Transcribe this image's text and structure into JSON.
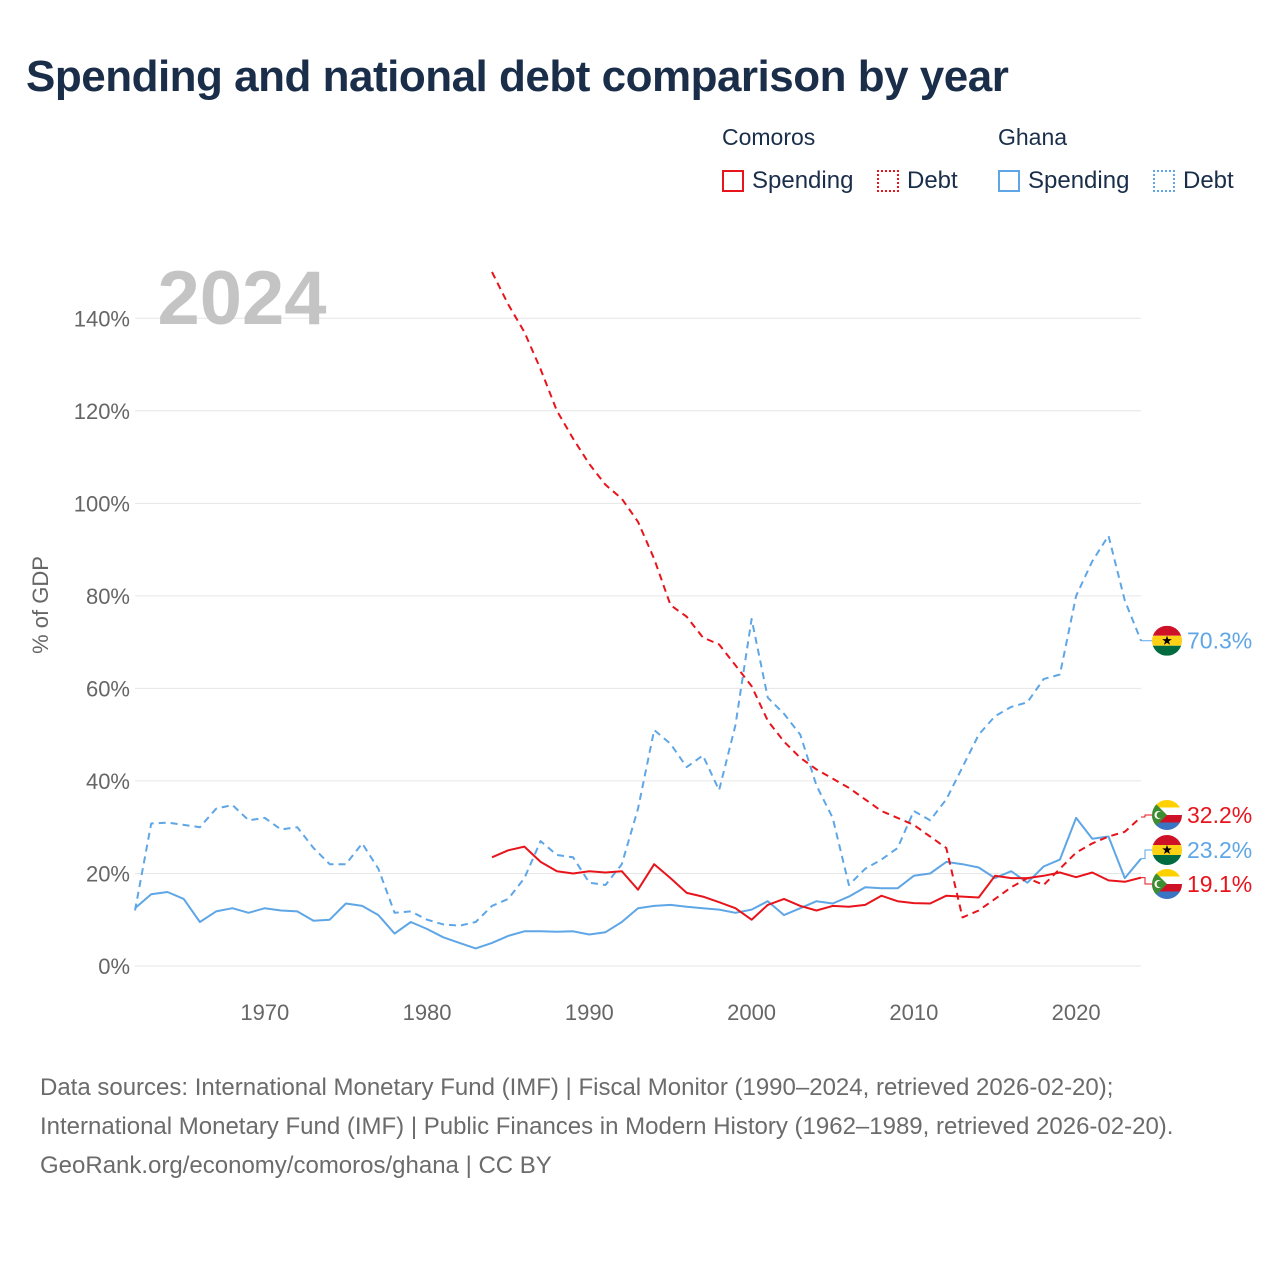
{
  "title": "Spending and national debt comparison by year",
  "legend": {
    "groups": [
      {
        "country": "Comoros",
        "spending_label": "Spending",
        "debt_label": "Debt",
        "color": "#e8141c"
      },
      {
        "country": "Ghana",
        "spending_label": "Spending",
        "debt_label": "Debt",
        "color": "#5ea6e6"
      }
    ]
  },
  "footer": {
    "sources": "Data sources: International Monetary Fund (IMF) | Fiscal Monitor (1990–2024, retrieved 2026-02-20); International Monetary Fund (IMF) | Public Finances in Modern History (1962–1989, retrieved 2026-02-20).",
    "credit": "GeoRank.org/economy/comoros/ghana | CC BY"
  },
  "chart_data": {
    "type": "line",
    "title": "Spending and national debt comparison by year",
    "year_watermark": "2024",
    "ylabel": "% of GDP",
    "xlabel": "",
    "xlim": [
      1962,
      2024
    ],
    "ylim": [
      0,
      150
    ],
    "y_ticks": [
      0,
      20,
      40,
      60,
      80,
      100,
      120,
      140
    ],
    "y_tick_labels": [
      "0%",
      "20%",
      "40%",
      "60%",
      "80%",
      "100%",
      "120%",
      "140%"
    ],
    "x_ticks": [
      1970,
      1980,
      1990,
      2000,
      2010,
      2020
    ],
    "x_tick_labels": [
      "1970",
      "1980",
      "1990",
      "2000",
      "2010",
      "2020"
    ],
    "grid": true,
    "series": [
      {
        "name": "Comoros Debt",
        "country": "Comoros",
        "metric": "Debt",
        "color": "#e8141c",
        "dashed": true,
        "x": [
          1984,
          1985,
          1986,
          1987,
          1988,
          1989,
          1990,
          1991,
          1992,
          1993,
          1994,
          1995,
          1996,
          1997,
          1998,
          1999,
          2000,
          2001,
          2002,
          2003,
          2004,
          2005,
          2006,
          2007,
          2008,
          2009,
          2010,
          2011,
          2012,
          2013,
          2014,
          2015,
          2016,
          2017,
          2018,
          2019,
          2020,
          2021,
          2022,
          2023,
          2024
        ],
        "values": [
          150,
          143,
          137,
          129,
          120,
          114,
          108.5,
          104,
          101,
          96,
          88,
          78,
          75.5,
          71,
          69.5,
          65,
          60.5,
          53,
          48.5,
          45,
          42.5,
          40.5,
          38.5,
          36,
          33.5,
          32,
          30.5,
          28,
          25.5,
          10.5,
          12,
          14.5,
          17,
          19,
          17.5,
          21,
          24.5,
          26.5,
          28,
          29,
          32.2
        ],
        "end_label": "32.2%"
      },
      {
        "name": "Comoros Spending",
        "country": "Comoros",
        "metric": "Spending",
        "color": "#e8141c",
        "dashed": false,
        "x": [
          1984,
          1985,
          1986,
          1987,
          1988,
          1989,
          1990,
          1991,
          1992,
          1993,
          1994,
          1995,
          1996,
          1997,
          1998,
          1999,
          2000,
          2001,
          2002,
          2003,
          2004,
          2005,
          2006,
          2007,
          2008,
          2009,
          2010,
          2011,
          2012,
          2013,
          2014,
          2015,
          2016,
          2017,
          2018,
          2019,
          2020,
          2021,
          2022,
          2023,
          2024
        ],
        "values": [
          23.5,
          25,
          25.8,
          22.5,
          20.5,
          20,
          20.5,
          20.2,
          20.5,
          16.5,
          22,
          19,
          15.8,
          15,
          13.8,
          12.5,
          10,
          13.2,
          14.5,
          13,
          12,
          13,
          12.8,
          13.2,
          15.2,
          14,
          13.6,
          13.5,
          15.2,
          15,
          14.8,
          19.5,
          19,
          19,
          19.5,
          20.2,
          19.2,
          20.2,
          18.5,
          18.2,
          19.1
        ],
        "end_label": "19.1%"
      },
      {
        "name": "Ghana Debt",
        "country": "Ghana",
        "metric": "Debt",
        "color": "#5ea6e6",
        "dashed": true,
        "x": [
          1962,
          1963,
          1964,
          1965,
          1966,
          1967,
          1968,
          1969,
          1970,
          1971,
          1972,
          1973,
          1974,
          1975,
          1976,
          1977,
          1978,
          1979,
          1980,
          1981,
          1982,
          1983,
          1984,
          1985,
          1986,
          1987,
          1988,
          1989,
          1990,
          1991,
          1992,
          1993,
          1994,
          1995,
          1996,
          1997,
          1998,
          1999,
          2000,
          2001,
          2002,
          2003,
          2004,
          2005,
          2006,
          2007,
          2008,
          2009,
          2010,
          2011,
          2012,
          2013,
          2014,
          2015,
          2016,
          2017,
          2018,
          2019,
          2020,
          2021,
          2022,
          2023,
          2024
        ],
        "values": [
          12,
          30.8,
          31,
          30.5,
          30,
          34,
          34.8,
          31.5,
          32,
          29.5,
          30,
          25.5,
          22,
          22,
          26.5,
          21,
          11.5,
          11.8,
          10,
          9,
          8.7,
          9.5,
          13,
          14.5,
          19,
          27,
          24,
          23.5,
          18,
          17.5,
          22,
          34,
          51,
          48,
          43,
          45.5,
          38,
          52,
          75,
          58,
          54.5,
          50,
          39,
          32,
          17.5,
          21,
          23,
          25.5,
          33.5,
          31.5,
          36,
          43,
          50,
          54,
          56,
          57,
          62,
          63,
          80,
          87.5,
          93,
          79,
          70.3
        ],
        "end_label": "70.3%"
      },
      {
        "name": "Ghana Spending",
        "country": "Ghana",
        "metric": "Spending",
        "color": "#5ea6e6",
        "dashed": false,
        "x": [
          1962,
          1963,
          1964,
          1965,
          1966,
          1967,
          1968,
          1969,
          1970,
          1971,
          1972,
          1973,
          1974,
          1975,
          1976,
          1977,
          1978,
          1979,
          1980,
          1981,
          1982,
          1983,
          1984,
          1985,
          1986,
          1987,
          1988,
          1989,
          1990,
          1991,
          1992,
          1993,
          1994,
          1995,
          1996,
          1997,
          1998,
          1999,
          2000,
          2001,
          2002,
          2003,
          2004,
          2005,
          2006,
          2007,
          2008,
          2009,
          2010,
          2011,
          2012,
          2013,
          2014,
          2015,
          2016,
          2017,
          2018,
          2019,
          2020,
          2021,
          2022,
          2023,
          2024
        ],
        "values": [
          12.5,
          15.5,
          16,
          14.5,
          9.5,
          11.8,
          12.5,
          11.5,
          12.5,
          12,
          11.8,
          9.8,
          10,
          13.5,
          13,
          11,
          7,
          9.5,
          8,
          6.2,
          5,
          3.8,
          5,
          6.5,
          7.5,
          7.5,
          7.4,
          7.5,
          6.8,
          7.3,
          9.5,
          12.5,
          13,
          13.2,
          12.8,
          12.5,
          12.2,
          11.5,
          12.2,
          14,
          11,
          12.5,
          14,
          13.5,
          15,
          17,
          16.8,
          16.8,
          19.5,
          20,
          22.5,
          22,
          21.3,
          19,
          20.5,
          18,
          21.5,
          23,
          32,
          27.5,
          28,
          19,
          23.2
        ],
        "end_label": "23.2%"
      }
    ]
  }
}
